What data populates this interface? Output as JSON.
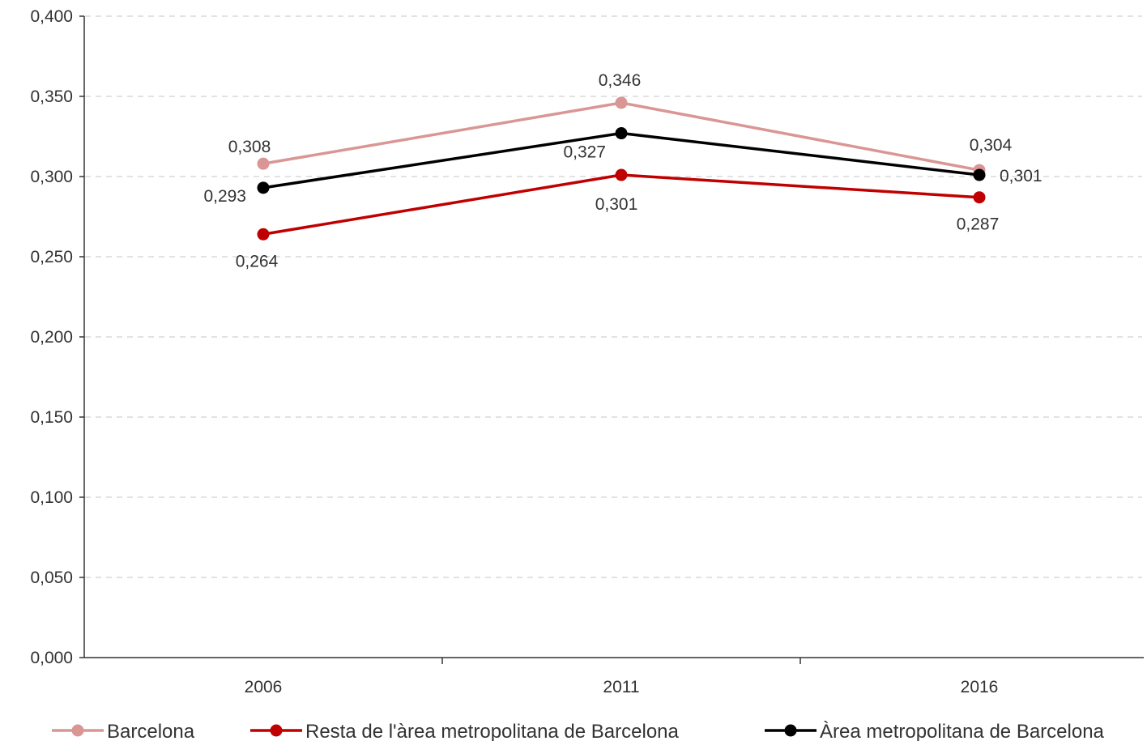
{
  "chart_data": {
    "type": "line",
    "categories": [
      "2006",
      "2011",
      "2016"
    ],
    "series": [
      {
        "name": "Barcelona",
        "values": [
          0.308,
          0.346,
          0.304
        ],
        "labels": [
          "0,308",
          "0,346",
          "0,304"
        ],
        "color": "#d99694"
      },
      {
        "name": "Resta de l'àrea metropolitana de Barcelona",
        "values": [
          0.264,
          0.301,
          0.287
        ],
        "labels": [
          "0,264",
          "0,301",
          "0,287"
        ],
        "color": "#c00000"
      },
      {
        "name": "Àrea metropolitana de Barcelona",
        "values": [
          0.293,
          0.327,
          0.301
        ],
        "labels": [
          "0,293",
          "0,327",
          "0,301"
        ],
        "color": "#000000"
      }
    ],
    "y_ticks": [
      {
        "value": 0.0,
        "label": "0,000"
      },
      {
        "value": 0.05,
        "label": "0,050"
      },
      {
        "value": 0.1,
        "label": "0,100"
      },
      {
        "value": 0.15,
        "label": "0,150"
      },
      {
        "value": 0.2,
        "label": "0,200"
      },
      {
        "value": 0.25,
        "label": "0,250"
      },
      {
        "value": 0.3,
        "label": "0,300"
      },
      {
        "value": 0.35,
        "label": "0,350"
      },
      {
        "value": 0.4,
        "label": "0,400"
      }
    ],
    "ylim": [
      0,
      0.4
    ],
    "grid": true,
    "legend_position": "bottom",
    "title": "",
    "xlabel": "",
    "ylabel": ""
  }
}
